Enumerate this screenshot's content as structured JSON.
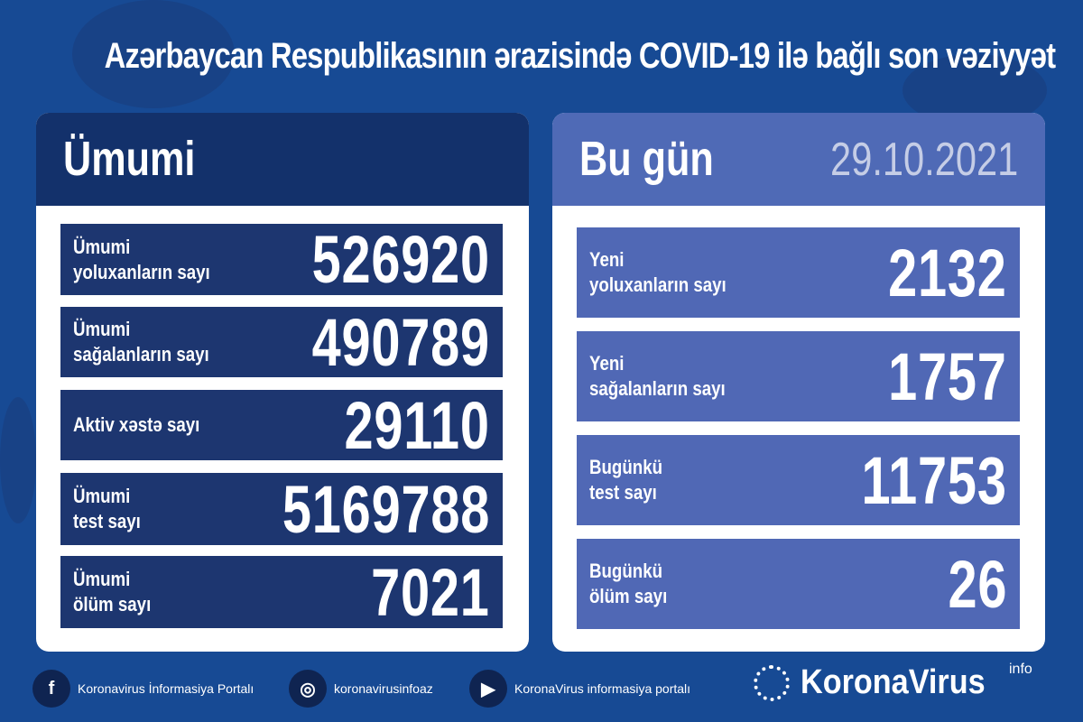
{
  "title": "Azərbaycan Respublikasının ərazisində COVID-19 ilə bağlı son vəziyyət",
  "colors": {
    "background": "#174a94",
    "left_header": "#13316b",
    "left_rows": "#1d3670",
    "right_header": "#4f6ab6",
    "right_rows": "#5068b5",
    "date": "#c5cde6"
  },
  "total": {
    "heading": "Ümumi",
    "rows": [
      {
        "label": "Ümumi\nyoluxanların sayı",
        "value": "526920"
      },
      {
        "label": "Ümumi\nsağalanların sayı",
        "value": "490789"
      },
      {
        "label": "Aktiv xəstə sayı",
        "value": "29110"
      },
      {
        "label": "Ümumi\ntest sayı",
        "value": "5169788"
      },
      {
        "label": "Ümumi\nölüm sayı",
        "value": "7021"
      }
    ]
  },
  "today": {
    "heading": "Bu gün",
    "date": "29.10.2021",
    "rows": [
      {
        "label": "Yeni\nyoluxanların sayı",
        "value": "2132"
      },
      {
        "label": "Yeni\nsağalanların sayı",
        "value": "1757"
      },
      {
        "label": "Bugünkü\ntest sayı",
        "value": "11753"
      },
      {
        "label": "Bugünkü\nölüm sayı",
        "value": "26"
      }
    ]
  },
  "footer": {
    "links": [
      {
        "icon": "facebook-icon",
        "glyph": "f",
        "text": "Koronavirus İnformasiya Portalı"
      },
      {
        "icon": "instagram-icon",
        "glyph": "◎",
        "text": "koronavirusinfoaz"
      },
      {
        "icon": "youtube-icon",
        "glyph": "▶",
        "text": "KoronaVirus informasiya portalı"
      }
    ],
    "brand": "KoronaVirus",
    "brand_sup": "info"
  }
}
